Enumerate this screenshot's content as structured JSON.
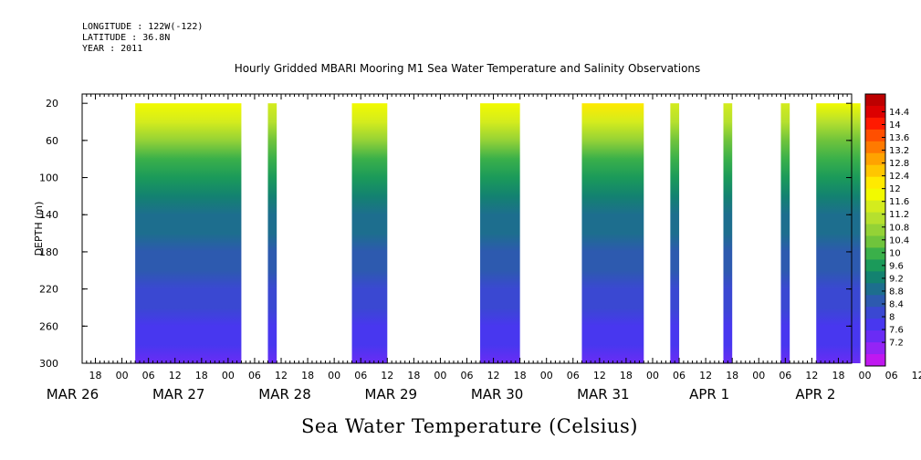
{
  "meta": {
    "longitude": "LONGITUDE : 122W(-122)",
    "latitude": "LATITUDE : 36.8N",
    "year": "YEAR : 2011"
  },
  "title": "Hourly Gridded MBARI Mooring M1 Sea Water Temperature and Salinity Observations",
  "footer": "Sea Water Temperature (Celsius)",
  "chart_data": {
    "type": "heatmap",
    "title": "Hourly Gridded MBARI Mooring M1 Sea Water Temperature and Salinity Observations",
    "xlabel": "",
    "ylabel": "DEPTH (m)",
    "colorbar_label": "Sea Water Temperature (Celsius)",
    "x_hour_ticks": [
      "18",
      "00",
      "06",
      "12",
      "18",
      "00",
      "06",
      "12",
      "18",
      "00",
      "06",
      "12",
      "18",
      "00",
      "06",
      "12",
      "18",
      "00",
      "06",
      "12",
      "18",
      "00",
      "06",
      "12",
      "18",
      "00",
      "06",
      "12",
      "18",
      "00",
      "06",
      "12"
    ],
    "x_date_labels": [
      "MAR 26",
      "MAR 27",
      "MAR 28",
      "MAR 29",
      "MAR 30",
      "MAR 31",
      "APR  1",
      "APR  2"
    ],
    "xlim_hours": [
      -9,
      165
    ],
    "y_ticks": [
      20,
      60,
      100,
      140,
      180,
      220,
      260,
      300
    ],
    "ylim": [
      10,
      300
    ],
    "y_inverted": true,
    "colorbar_levels": [
      "14.4",
      "14",
      "13.6",
      "13.2",
      "12.8",
      "12.4",
      "12",
      "11.6",
      "11.2",
      "10.8",
      "10.4",
      "10",
      "9.6",
      "9.2",
      "8.8",
      "8.4",
      "8",
      "7.6",
      "7.2"
    ],
    "colorbar_colors": [
      "#bd0000",
      "#dc0000",
      "#ff1a00",
      "#ff4f00",
      "#ff7a00",
      "#ffa300",
      "#ffc600",
      "#ffea00",
      "#f2fa00",
      "#d4ec1d",
      "#b6e02e",
      "#94d236",
      "#6fc43c",
      "#3ab04a",
      "#1b9a5a",
      "#138270",
      "#1d6e8e",
      "#2d5aaf",
      "#3a48d2",
      "#4837ef",
      "#6a2cf5",
      "#9424f5",
      "#c018f0"
    ],
    "depth_profile": [
      {
        "depth": 20,
        "temp": 11.9
      },
      {
        "depth": 40,
        "temp": 11.4
      },
      {
        "depth": 60,
        "temp": 10.6
      },
      {
        "depth": 80,
        "temp": 9.9
      },
      {
        "depth": 100,
        "temp": 9.4
      },
      {
        "depth": 120,
        "temp": 9.1
      },
      {
        "depth": 140,
        "temp": 8.9
      },
      {
        "depth": 160,
        "temp": 8.7
      },
      {
        "depth": 180,
        "temp": 8.5
      },
      {
        "depth": 200,
        "temp": 8.3
      },
      {
        "depth": 220,
        "temp": 8.15
      },
      {
        "depth": 240,
        "temp": 8.0
      },
      {
        "depth": 260,
        "temp": 7.85
      },
      {
        "depth": 280,
        "temp": 7.55
      },
      {
        "depth": 300,
        "temp": 7.3
      }
    ],
    "data_segments": [
      {
        "start_hour": 3,
        "end_hour": 27,
        "surface_temp": 11.9
      },
      {
        "start_hour": 33,
        "end_hour": 35,
        "surface_temp": 11.6
      },
      {
        "start_hour": 52,
        "end_hour": 60,
        "surface_temp": 11.8
      },
      {
        "start_hour": 81,
        "end_hour": 90,
        "surface_temp": 11.8
      },
      {
        "start_hour": 104,
        "end_hour": 118,
        "surface_temp": 12.2
      },
      {
        "start_hour": 124,
        "end_hour": 126,
        "surface_temp": 11.6
      },
      {
        "start_hour": 136,
        "end_hour": 138,
        "surface_temp": 11.5
      },
      {
        "start_hour": 149,
        "end_hour": 151,
        "surface_temp": 11.6
      },
      {
        "start_hour": 157,
        "end_hour": 167,
        "surface_temp": 11.7
      }
    ]
  }
}
